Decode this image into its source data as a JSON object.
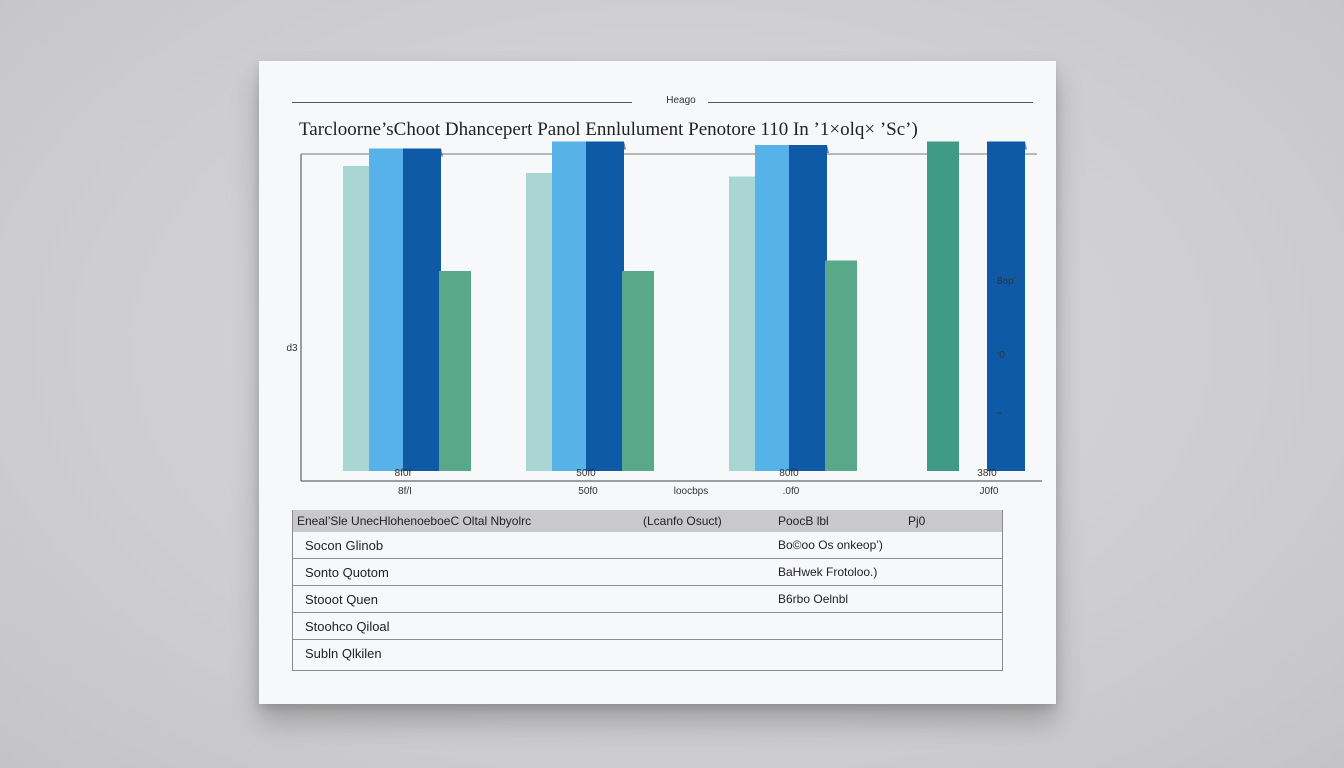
{
  "page": {
    "header_tag": "Heago",
    "title": "Tarcloorne’sChoot Dhancepert Panol Ennlulument Penotore 110 In ’1×olq× ’Sc’)"
  },
  "chart_data": {
    "type": "bar",
    "title": "Tarcloorne’sChoot Dhancepert Panol Ennlulument Penotore 110 In ’1×olq× ’Sc’)",
    "categories": [
      "8f/I",
      "50f0",
      ".0f0",
      "J0f0"
    ],
    "category_labels_top": [
      "8f0f",
      "50f0",
      "80f0",
      "38f0"
    ],
    "xlabel": "loocbps",
    "ylabel": "d3",
    "ylim": [
      0,
      100
    ],
    "grid": false,
    "series": [
      {
        "values": [
          90,
          88,
          87,
          0
        ],
        "color": "#a9d6d2"
      },
      {
        "values": [
          95,
          97,
          96,
          0
        ],
        "color": "#56b2e8"
      },
      {
        "values": [
          95,
          97,
          96,
          97
        ],
        "color": "#0f5aa6"
      },
      {
        "values": [
          60,
          60,
          63,
          0
        ],
        "color": "#5aa88a"
      },
      {
        "values": [
          0,
          0,
          0,
          97
        ],
        "color": "#3f9b86"
      }
    ],
    "annotations": [
      {
        "text": "8op’",
        "color": "#333"
      },
      {
        "text": "‘0",
        "color": "#333"
      },
      {
        "text": "’’",
        "color": "#333"
      }
    ]
  },
  "table": {
    "headers": [
      "Eneal’Sle UnecHlohenoeboeC Oltal Nbyolrc",
      "(Lcanfo Osuct)",
      "PoocB lbl",
      "Pj0"
    ],
    "rows": [
      {
        "name": "Socon Glinob",
        "value": "Bo©oo Os onkeop’)"
      },
      {
        "name": "Sonto Quotom",
        "value": "BaHwek Frotoloo.)"
      },
      {
        "name": "Stooot Quen",
        "value": "B6rbo Oelnbl"
      },
      {
        "name": "Stoohco Qiloal",
        "value": ""
      },
      {
        "name": "Subln Qlkilen",
        "value": ""
      }
    ]
  }
}
